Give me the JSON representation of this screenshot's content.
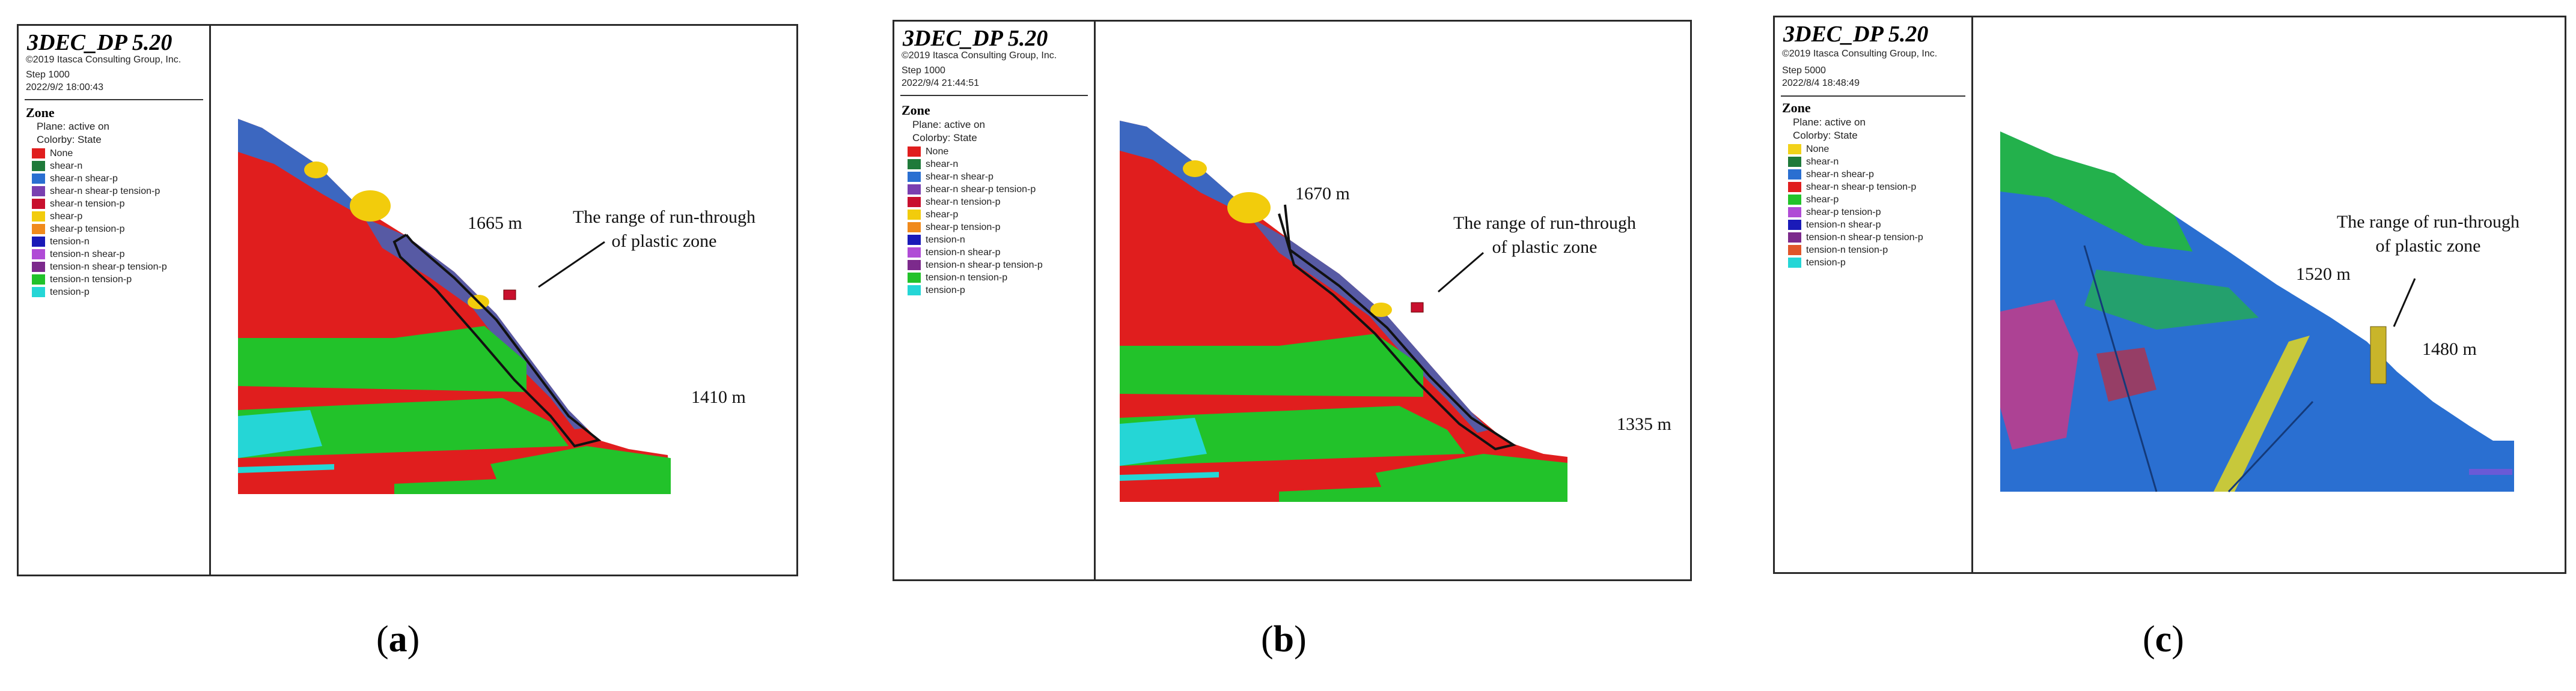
{
  "panels": [
    {
      "id": "a",
      "brand": "3DEC_DP 5.20",
      "copyright": "©2019 Itasca Consulting Group, Inc.",
      "step": "Step 1000",
      "datetime": "2022/9/2 18:00:43",
      "zone_title": "Zone",
      "plane": "Plane: active on",
      "colorby": "Colorby: State",
      "legend": [
        {
          "label": "None",
          "color": "#e01e1e"
        },
        {
          "label": "shear-n",
          "color": "#1f7a3a"
        },
        {
          "label": "shear-n shear-p",
          "color": "#2a6fd1"
        },
        {
          "label": "shear-n shear-p tension-p",
          "color": "#7a3fb0"
        },
        {
          "label": "shear-n tension-p",
          "color": "#c8102e"
        },
        {
          "label": "shear-p",
          "color": "#f2cc0c"
        },
        {
          "label": "shear-p tension-p",
          "color": "#f08a1c"
        },
        {
          "label": "tension-n",
          "color": "#1a1ab8"
        },
        {
          "label": "tension-n shear-p",
          "color": "#b04bd6"
        },
        {
          "label": "tension-n shear-p tension-p",
          "color": "#7c2a8c"
        },
        {
          "label": "tension-n tension-p",
          "color": "#22c22a"
        },
        {
          "label": "tension-p",
          "color": "#25d6d6"
        }
      ],
      "annotation": "The range of run-through\nof plastic zone",
      "elev_top": "1665 m",
      "elev_bottom": "1410 m",
      "caption_letter": "a"
    },
    {
      "id": "b",
      "brand": "3DEC_DP 5.20",
      "copyright": "©2019 Itasca Consulting Group, Inc.",
      "step": "Step 1000",
      "datetime": "2022/9/4 21:44:51",
      "zone_title": "Zone",
      "plane": "Plane: active on",
      "colorby": "Colorby: State",
      "legend": [
        {
          "label": "None",
          "color": "#e01e1e"
        },
        {
          "label": "shear-n",
          "color": "#1f7a3a"
        },
        {
          "label": "shear-n shear-p",
          "color": "#2a6fd1"
        },
        {
          "label": "shear-n shear-p tension-p",
          "color": "#7a3fb0"
        },
        {
          "label": "shear-n tension-p",
          "color": "#c8102e"
        },
        {
          "label": "shear-p",
          "color": "#f2cc0c"
        },
        {
          "label": "shear-p tension-p",
          "color": "#f08a1c"
        },
        {
          "label": "tension-n",
          "color": "#1a1ab8"
        },
        {
          "label": "tension-n shear-p",
          "color": "#b04bd6"
        },
        {
          "label": "tension-n shear-p tension-p",
          "color": "#7c2a8c"
        },
        {
          "label": "tension-n tension-p",
          "color": "#22c22a"
        },
        {
          "label": "tension-p",
          "color": "#25d6d6"
        }
      ],
      "annotation": "The range of run-through\nof plastic zone",
      "elev_top": "1670 m",
      "elev_bottom": "1335 m",
      "caption_letter": "b"
    },
    {
      "id": "c",
      "brand": "3DEC_DP 5.20",
      "copyright": "©2019 Itasca Consulting Group, Inc.",
      "step": "Step 5000",
      "datetime": "2022/8/4 18:48:49",
      "zone_title": "Zone",
      "plane": "Plane: active on",
      "colorby": "Colorby: State",
      "legend": [
        {
          "label": "None",
          "color": "#f2d21a"
        },
        {
          "label": "shear-n",
          "color": "#1f7a3a"
        },
        {
          "label": "shear-n shear-p",
          "color": "#2a6fd1"
        },
        {
          "label": "shear-n shear-p tension-p",
          "color": "#e01e1e"
        },
        {
          "label": "shear-p",
          "color": "#22c22a"
        },
        {
          "label": "shear-p tension-p",
          "color": "#b04bd6"
        },
        {
          "label": "tension-n shear-p",
          "color": "#1a1ab8"
        },
        {
          "label": "tension-n shear-p tension-p",
          "color": "#7c2a8c"
        },
        {
          "label": "tension-n tension-p",
          "color": "#e0562a"
        },
        {
          "label": "tension-p",
          "color": "#25d6d6"
        }
      ],
      "annotation": "The range of run-through\nof plastic zone",
      "elev_top": "1520 m",
      "elev_bottom": "1480 m",
      "caption_letter": "c"
    }
  ]
}
